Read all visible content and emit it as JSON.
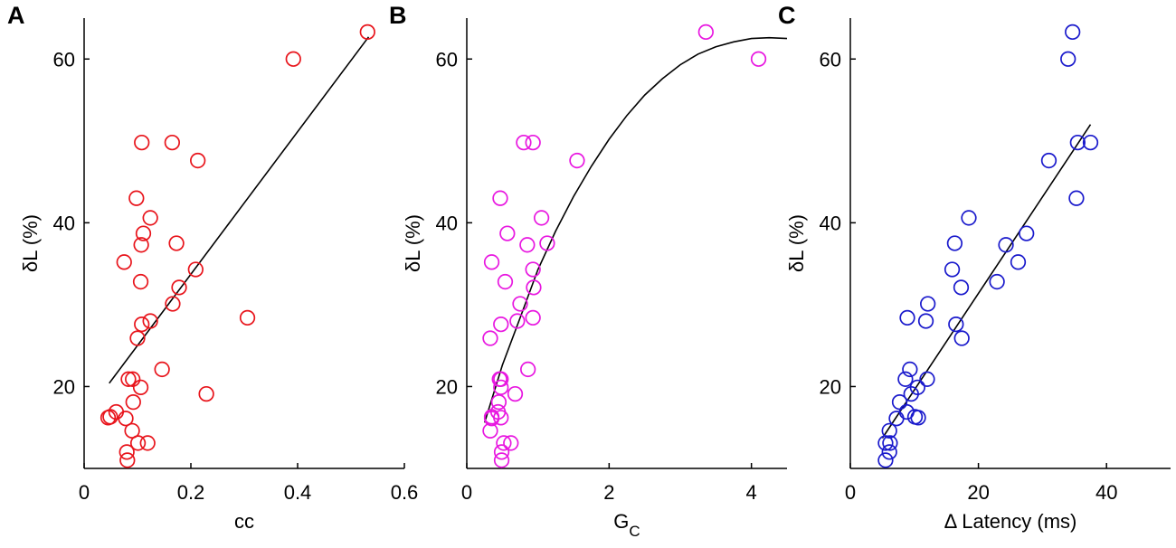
{
  "chart_data": [
    {
      "panel": "A",
      "type": "scatter",
      "xlabel": "cc",
      "ylabel": "δL (%)",
      "xlim": [
        0,
        0.6
      ],
      "ylim": [
        10,
        65
      ],
      "xticks": [
        0,
        0.2,
        0.4,
        0.6
      ],
      "xtick_labels": [
        "0",
        "0.2",
        "0.4",
        "0.6"
      ],
      "yticks": [
        20,
        40,
        60
      ],
      "ytick_labels": [
        "20",
        "40",
        "60"
      ],
      "color": "#e8141b",
      "x": [
        0.531,
        0.392,
        0.108,
        0.165,
        0.213,
        0.098,
        0.124,
        0.111,
        0.107,
        0.173,
        0.075,
        0.209,
        0.106,
        0.178,
        0.166,
        0.306,
        0.108,
        0.124,
        0.1,
        0.146,
        0.083,
        0.091,
        0.106,
        0.229,
        0.092,
        0.06,
        0.049,
        0.045,
        0.078,
        0.09,
        0.101,
        0.119,
        0.08,
        0.081
      ],
      "y": [
        63.3,
        60.0,
        49.8,
        49.8,
        47.6,
        43.0,
        40.6,
        38.7,
        37.3,
        37.5,
        35.2,
        34.3,
        32.8,
        32.1,
        30.1,
        28.4,
        27.6,
        28.0,
        25.9,
        22.1,
        20.9,
        20.9,
        19.9,
        19.1,
        18.1,
        16.9,
        16.3,
        16.2,
        16.1,
        14.6,
        13.1,
        13.1,
        12.0,
        11.0
      ],
      "fit": {
        "kind": "linear",
        "x": [
          0.047,
          0.533
        ],
        "y": [
          20.4,
          62.7
        ]
      }
    },
    {
      "panel": "B",
      "type": "scatter",
      "xlabel": "G",
      "xlabel_sub": "C",
      "ylabel": "δL (%)",
      "xlim": [
        0,
        4.5
      ],
      "ylim": [
        10,
        65
      ],
      "xticks": [
        0,
        2,
        4
      ],
      "xtick_labels": [
        "0",
        "2",
        "4"
      ],
      "yticks": [
        20,
        40,
        60
      ],
      "ytick_labels": [
        "20",
        "40",
        "60"
      ],
      "color": "#e817e0",
      "x": [
        3.36,
        4.1,
        0.8,
        0.93,
        1.55,
        0.47,
        1.05,
        0.57,
        0.85,
        1.13,
        0.35,
        0.93,
        0.54,
        0.94,
        0.75,
        0.93,
        0.48,
        0.71,
        0.33,
        0.86,
        0.48,
        0.46,
        0.48,
        0.68,
        0.45,
        0.44,
        0.35,
        0.48,
        0.35,
        0.33,
        0.52,
        0.62,
        0.49,
        0.49
      ],
      "y": [
        63.3,
        60.0,
        49.8,
        49.8,
        47.6,
        43.0,
        40.6,
        38.7,
        37.3,
        37.5,
        35.2,
        34.3,
        32.8,
        32.1,
        30.1,
        28.4,
        27.6,
        28.0,
        25.9,
        22.1,
        20.9,
        20.9,
        19.9,
        19.1,
        18.1,
        16.9,
        16.3,
        16.2,
        16.1,
        14.6,
        13.1,
        13.1,
        12.0,
        11.0
      ],
      "fit": {
        "kind": "curve",
        "x": [
          0.25,
          0.5,
          0.75,
          1.0,
          1.25,
          1.5,
          1.75,
          2.0,
          2.25,
          2.5,
          2.75,
          3.0,
          3.25,
          3.5,
          3.75,
          4.0,
          4.25,
          4.5
        ],
        "y": [
          15.6,
          22.6,
          28.4,
          34.3,
          39.0,
          43.2,
          46.9,
          50.2,
          53.1,
          55.6,
          57.6,
          59.3,
          60.6,
          61.5,
          62.1,
          62.5,
          62.6,
          62.5
        ]
      }
    },
    {
      "panel": "C",
      "type": "scatter",
      "xlabel": "Δ Latency (ms)",
      "ylabel": "δL (%)",
      "xlim": [
        0,
        50
      ],
      "ylim": [
        10,
        65
      ],
      "xticks": [
        0,
        20,
        40
      ],
      "xtick_labels": [
        "0",
        "20",
        "40"
      ],
      "yticks": [
        20,
        40,
        60
      ],
      "ytick_labels": [
        "20",
        "40",
        "60"
      ],
      "color": "#1a1acc",
      "x": [
        34.7,
        34.0,
        35.5,
        37.5,
        31.0,
        35.3,
        18.5,
        27.5,
        24.3,
        16.3,
        26.2,
        15.9,
        22.9,
        17.3,
        12.1,
        8.9,
        16.5,
        11.8,
        17.4,
        9.3,
        12.0,
        8.6,
        10.5,
        9.5,
        7.7,
        8.8,
        10.1,
        10.6,
        7.2,
        6.1,
        5.5,
        6.2,
        6.1,
        5.5
      ],
      "y": [
        63.3,
        60.0,
        49.8,
        49.8,
        47.6,
        43.0,
        40.6,
        38.7,
        37.3,
        37.5,
        35.2,
        34.3,
        32.8,
        32.1,
        30.1,
        28.4,
        27.6,
        28.0,
        25.9,
        22.1,
        20.9,
        20.9,
        19.9,
        19.1,
        18.1,
        16.9,
        16.3,
        16.2,
        16.1,
        14.6,
        13.1,
        13.1,
        12.0,
        11.0
      ],
      "fit": {
        "kind": "linear",
        "x": [
          5.0,
          37.5
        ],
        "y": [
          13.7,
          52.0
        ]
      }
    }
  ]
}
